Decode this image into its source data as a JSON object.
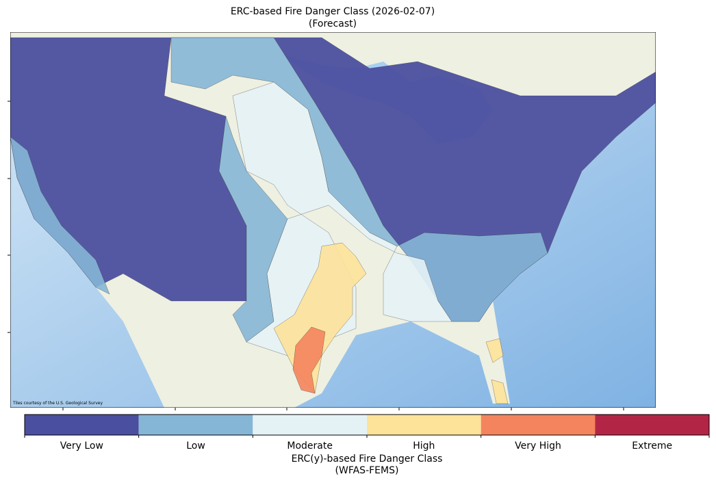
{
  "title": "ERC-based Fire Danger Class (2026-02-07)",
  "subtitle": "(Forecast)",
  "attribution": "Tiles courtesy of the U.S. Geological Survey",
  "legend": {
    "classes": [
      {
        "label": "Very Low",
        "color": "#4b4f9f"
      },
      {
        "label": "Low",
        "color": "#86b6d6"
      },
      {
        "label": "Moderate",
        "color": "#e4f2f6"
      },
      {
        "label": "High",
        "color": "#fde29a"
      },
      {
        "label": "Very High",
        "color": "#f4845d"
      },
      {
        "label": "Extreme",
        "color": "#b32545"
      }
    ],
    "title": "ERC(y)-based Fire Danger Class",
    "subtitle": "(WFAS-FEMS)"
  }
}
